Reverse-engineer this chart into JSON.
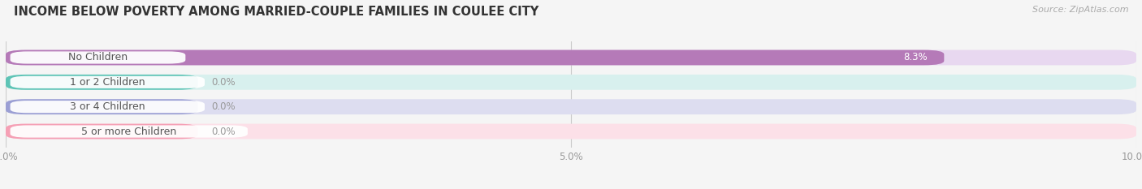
{
  "title": "INCOME BELOW POVERTY AMONG MARRIED-COUPLE FAMILIES IN COULEE CITY",
  "source": "Source: ZipAtlas.com",
  "categories": [
    "No Children",
    "1 or 2 Children",
    "3 or 4 Children",
    "5 or more Children"
  ],
  "values": [
    8.3,
    0.0,
    0.0,
    0.0
  ],
  "bar_colors": [
    "#b57ab8",
    "#5ec4b6",
    "#9b9fd4",
    "#f5a0b5"
  ],
  "bar_bg_colors": [
    "#e8d8f0",
    "#d8f0ee",
    "#ddddf0",
    "#fce0e8"
  ],
  "xlim": [
    0,
    10.0
  ],
  "xticks": [
    0.0,
    5.0,
    10.0
  ],
  "xtick_labels": [
    "0.0%",
    "5.0%",
    "10.0%"
  ],
  "value_labels": [
    "8.3%",
    "0.0%",
    "0.0%",
    "0.0%"
  ],
  "background_color": "#f5f5f5",
  "title_fontsize": 10.5,
  "label_fontsize": 9,
  "value_fontsize": 8.5,
  "bar_height": 0.62,
  "value_label_color_inside": "#ffffff",
  "value_label_color_outside": "#999999",
  "pill_text_color": "#555555",
  "pill_color": "#ffffff",
  "grid_color": "#cccccc",
  "axis_color": "#aaaaaa"
}
